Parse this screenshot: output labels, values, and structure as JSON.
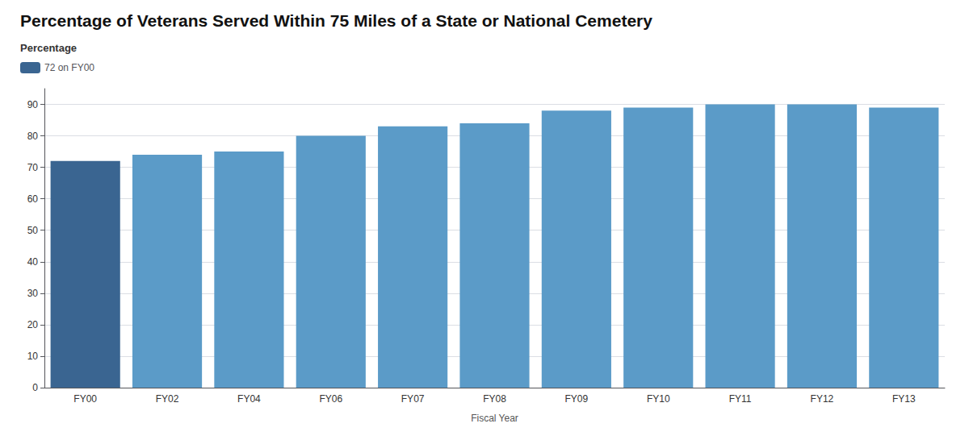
{
  "chart_data": {
    "type": "bar",
    "title": "Percentage of Veterans Served Within 75 Miles of a State or National Cemetery",
    "xlabel": "Fiscal Year",
    "categories": [
      "FY00",
      "FY02",
      "FY04",
      "FY06",
      "FY07",
      "FY08",
      "FY09",
      "FY10",
      "FY11",
      "FY12",
      "FY13"
    ],
    "series": [
      {
        "name": "72 on FY00",
        "values": [
          72,
          74,
          75,
          80,
          83,
          84,
          88,
          89,
          90,
          90,
          89
        ],
        "colors": [
          "#3a6591",
          "#5b9bc8",
          "#5b9bc8",
          "#5b9bc8",
          "#5b9bc8",
          "#5b9bc8",
          "#5b9bc8",
          "#5b9bc8",
          "#5b9bc8",
          "#5b9bc8",
          "#5b9bc8"
        ]
      }
    ],
    "legend": "upper left",
    "legend_title": "Percentage",
    "ylim": [
      0,
      95
    ],
    "yticks": [
      0,
      10,
      20,
      30,
      40,
      50,
      60,
      70,
      80,
      90
    ],
    "grid": true
  }
}
